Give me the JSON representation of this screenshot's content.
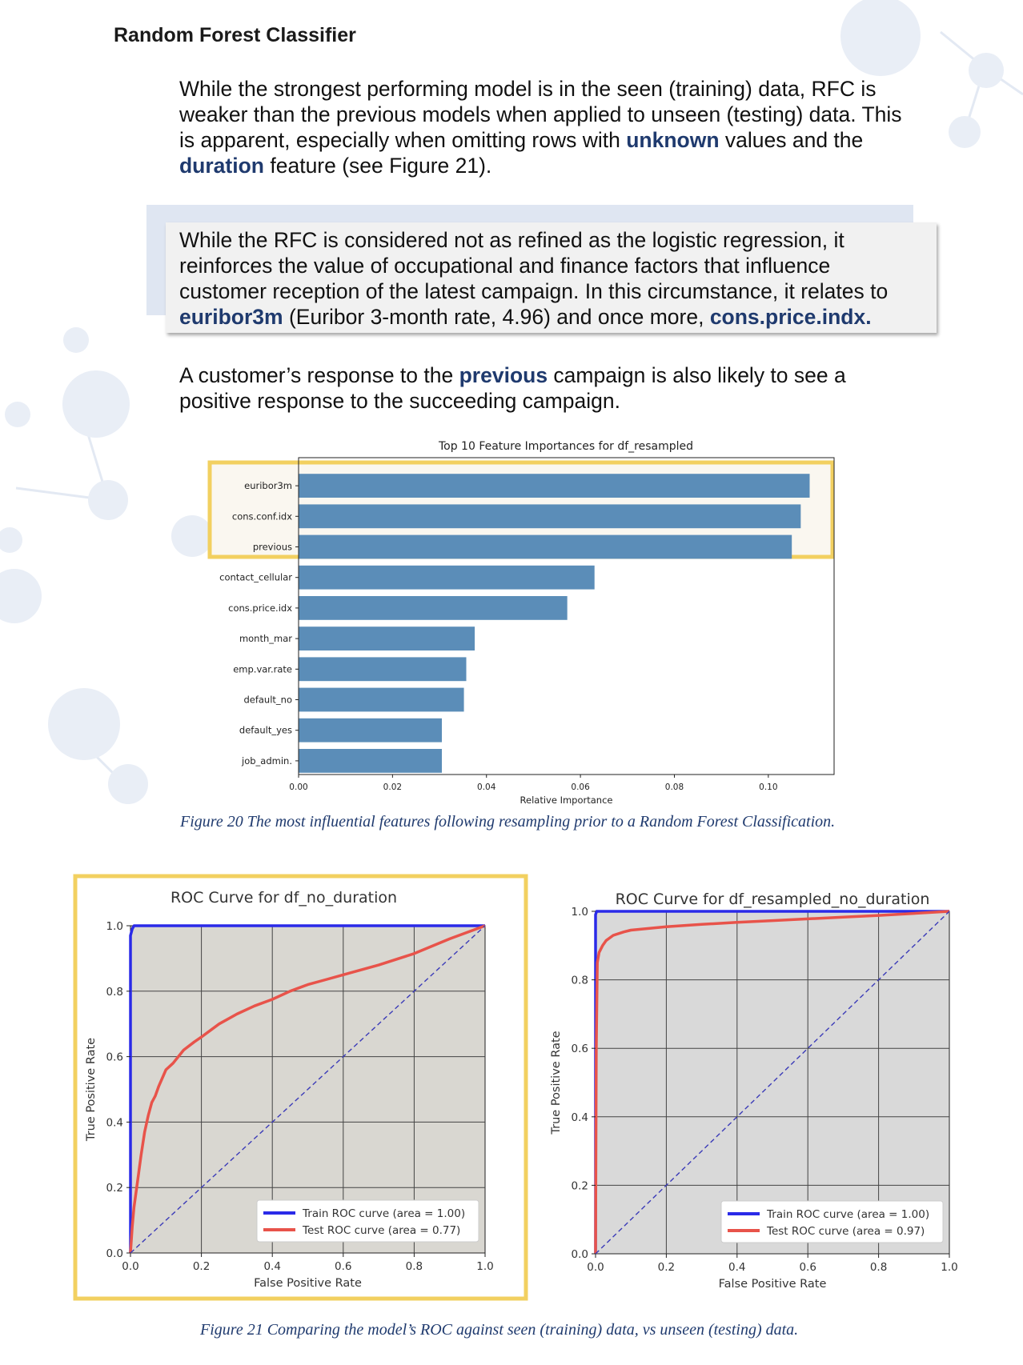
{
  "heading": "Random Forest Classifier",
  "para1": {
    "l1": "While the strongest performing model is in the seen (training) data, RFC is",
    "l2": "weaker than the previous models when applied to unseen (testing) data. This",
    "l3a": "is apparent, especially when omitting rows with ",
    "l3b": "unknown",
    "l3c": " values and the",
    "l4a": "duration",
    "l4b": " feature (see Figure 21)."
  },
  "callout": {
    "l1": "While the RFC is considered not as refined as the logistic regression, it",
    "l2": "reinforces the value of occupational and finance factors that influence",
    "l3": "customer reception of the latest campaign. In this circumstance, it relates to",
    "l4a": "euribor3m",
    "l4b": " (Euribor 3-month rate, 4.96) and once more, ",
    "l4c": "cons.price.indx."
  },
  "para2": {
    "l1a": "A customer’s response to the ",
    "l1b": "previous",
    "l1c": " campaign is also likely to see a",
    "l2": "positive response to the succeeding campaign."
  },
  "captions": {
    "fig20": "Figure 20 The most influential features following resampling prior to a Random Forest Classification.",
    "fig21": "Figure 21 Comparing the model’s ROC against seen (training) data, vs unseen (testing) data."
  },
  "colors": {
    "bar": "#5b8db8",
    "highlight": "#f2d060",
    "train": "#2a2ae8",
    "test": "#e8534a",
    "heading_accent": "#1f3a6e",
    "roc_bg_left": "#d9d7d1",
    "roc_bg_right": "#d9d9d9"
  },
  "chart_data": [
    {
      "type": "bar",
      "orientation": "horizontal",
      "title": "Top 10 Feature Importances for df_resampled",
      "xlabel": "Relative Importance",
      "ylabel": "",
      "categories": [
        "euribor3m",
        "cons.conf.idx",
        "previous",
        "contact_cellular",
        "cons.price.idx",
        "month_mar",
        "emp.var.rate",
        "default_no",
        "default_yes",
        "job_admin."
      ],
      "values": [
        0.1088,
        0.1069,
        0.105,
        0.063,
        0.0572,
        0.0375,
        0.0357,
        0.0352,
        0.0305,
        0.0305
      ],
      "xlim": [
        0,
        0.114
      ],
      "xticks": [
        "0.00",
        "0.02",
        "0.04",
        "0.06",
        "0.08",
        "0.10"
      ],
      "grid": false,
      "highlighted": [
        "euribor3m",
        "cons.conf.idx",
        "previous"
      ]
    },
    {
      "type": "line",
      "title": "ROC Curve for df_no_duration",
      "xlabel": "False Positive Rate",
      "ylabel": "True Positive Rate",
      "xlim": [
        0,
        1
      ],
      "ylim": [
        0,
        1
      ],
      "xticks": [
        "0.0",
        "0.2",
        "0.4",
        "0.6",
        "0.8",
        "1.0"
      ],
      "yticks": [
        "0.0",
        "0.2",
        "0.4",
        "0.6",
        "0.8",
        "1.0"
      ],
      "grid": true,
      "legend_position": "lower-right",
      "series": [
        {
          "name": "Train ROC curve (area = 1.00)",
          "style": "solid",
          "x": [
            0,
            0.0,
            0.005,
            0.01,
            1.0
          ],
          "y": [
            0,
            0.97,
            0.99,
            1.0,
            1.0
          ]
        },
        {
          "name": "Test ROC curve (area = 0.77)",
          "style": "solid",
          "x": [
            0,
            0.005,
            0.01,
            0.02,
            0.03,
            0.04,
            0.05,
            0.06,
            0.07,
            0.08,
            0.1,
            0.12,
            0.15,
            0.18,
            0.2,
            0.25,
            0.3,
            0.35,
            0.4,
            0.45,
            0.5,
            0.55,
            0.6,
            0.7,
            0.8,
            0.9,
            1.0
          ],
          "y": [
            0,
            0.08,
            0.14,
            0.22,
            0.3,
            0.37,
            0.42,
            0.46,
            0.48,
            0.51,
            0.56,
            0.58,
            0.62,
            0.645,
            0.66,
            0.7,
            0.73,
            0.755,
            0.775,
            0.8,
            0.82,
            0.835,
            0.85,
            0.88,
            0.915,
            0.96,
            1.0
          ]
        },
        {
          "name": "",
          "style": "dashed",
          "x": [
            0,
            1
          ],
          "y": [
            0,
            1
          ]
        }
      ]
    },
    {
      "type": "line",
      "title": "ROC Curve for df_resampled_no_duration",
      "xlabel": "False Positive Rate",
      "ylabel": "True Positive Rate",
      "xlim": [
        0,
        1
      ],
      "ylim": [
        0,
        1
      ],
      "xticks": [
        "0.0",
        "0.2",
        "0.4",
        "0.6",
        "0.8",
        "1.0"
      ],
      "yticks": [
        "0.0",
        "0.2",
        "0.4",
        "0.6",
        "0.8",
        "1.0"
      ],
      "grid": true,
      "legend_position": "lower-right",
      "series": [
        {
          "name": "Train ROC curve (area = 1.00)",
          "style": "solid",
          "x": [
            0,
            0.0,
            0.003,
            1.0
          ],
          "y": [
            0,
            0.99,
            1.0,
            1.0
          ]
        },
        {
          "name": "Test ROC curve (area = 0.97)",
          "style": "solid",
          "x": [
            0,
            0.002,
            0.005,
            0.01,
            0.02,
            0.03,
            0.05,
            0.08,
            0.1,
            0.15,
            0.2,
            0.3,
            0.4,
            0.5,
            0.6,
            0.7,
            0.8,
            0.9,
            1.0
          ],
          "y": [
            0,
            0.6,
            0.85,
            0.88,
            0.9,
            0.915,
            0.93,
            0.94,
            0.945,
            0.95,
            0.955,
            0.962,
            0.968,
            0.973,
            0.978,
            0.983,
            0.988,
            0.994,
            1.0
          ]
        },
        {
          "name": "",
          "style": "dashed",
          "x": [
            0,
            1
          ],
          "y": [
            0,
            1
          ]
        }
      ]
    }
  ]
}
